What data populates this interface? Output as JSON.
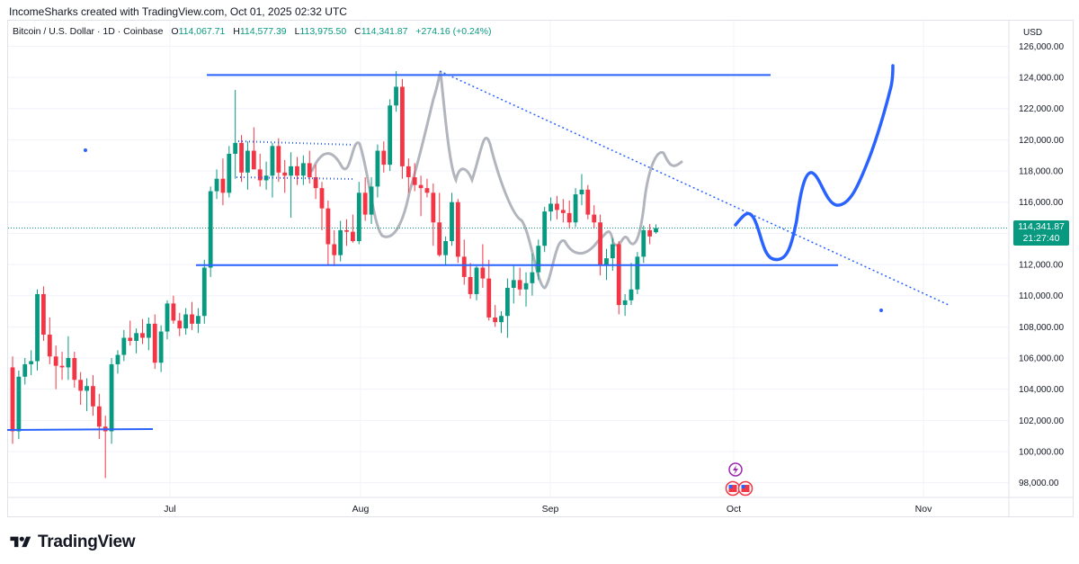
{
  "credit": "IncomeSharks created with TradingView.com, Oct 01, 2025 02:32 UTC",
  "legend": {
    "symbol": "Bitcoin / U.S. Dollar · 1D · Coinbase",
    "open_label": "O",
    "open": "114,067.71",
    "high_label": "H",
    "high": "114,577.39",
    "low_label": "L",
    "low": "113,975.50",
    "close_label": "C",
    "close": "114,341.87",
    "change": "+274.16 (+0.24%)"
  },
  "currency": "USD",
  "last_price": {
    "value": "114,341.87",
    "countdown": "21:27:40"
  },
  "brand": "TradingView",
  "colors": {
    "up": "#089981",
    "down": "#f23645",
    "drawing": "#2962ff",
    "ghost": "#b2b5be",
    "axis_text": "#131722"
  },
  "chart_data": {
    "type": "candlestick",
    "x_ticks": [
      "Jul",
      "Aug",
      "Sep",
      "Oct",
      "Nov"
    ],
    "y_ticks": [
      "98,000.00",
      "100,000.00",
      "102,000.00",
      "104,000.00",
      "106,000.00",
      "108,000.00",
      "110,000.00",
      "112,000.00",
      "114,000.00",
      "116,000.00",
      "118,000.00",
      "120,000.00",
      "122,000.00",
      "124,000.00",
      "126,000.00"
    ],
    "y_tick_values": [
      98000,
      100000,
      102000,
      104000,
      106000,
      108000,
      110000,
      112000,
      114000,
      116000,
      118000,
      120000,
      122000,
      124000,
      126000
    ],
    "ylim": [
      96500,
      127500
    ],
    "candles": [
      [
        105400,
        106100,
        100500,
        101300
      ],
      [
        101300,
        105200,
        100800,
        104800
      ],
      [
        104800,
        106000,
        104300,
        105600
      ],
      [
        105600,
        106500,
        104900,
        105800
      ],
      [
        105800,
        110400,
        105200,
        110100
      ],
      [
        110100,
        110600,
        107100,
        107500
      ],
      [
        107500,
        108600,
        105600,
        106100
      ],
      [
        106100,
        106800,
        104000,
        105500
      ],
      [
        105500,
        106400,
        104600,
        105400
      ],
      [
        105400,
        107400,
        104600,
        106000
      ],
      [
        106000,
        106400,
        104100,
        104600
      ],
      [
        104600,
        105100,
        103000,
        103900
      ],
      [
        103900,
        104700,
        102600,
        104200
      ],
      [
        104200,
        104900,
        102300,
        102900
      ],
      [
        102900,
        103700,
        100800,
        101600
      ],
      [
        101600,
        102300,
        98300,
        101300
      ],
      [
        101300,
        106000,
        100500,
        105600
      ],
      [
        105600,
        106500,
        105000,
        106200
      ],
      [
        106200,
        107800,
        105800,
        107300
      ],
      [
        107300,
        108400,
        106800,
        107100
      ],
      [
        107100,
        107900,
        106300,
        107600
      ],
      [
        107600,
        108500,
        106900,
        107300
      ],
      [
        107300,
        108600,
        106500,
        108200
      ],
      [
        108200,
        108800,
        105300,
        105700
      ],
      [
        105700,
        108100,
        105100,
        107700
      ],
      [
        107700,
        109700,
        107200,
        109500
      ],
      [
        109500,
        110000,
        108200,
        108400
      ],
      [
        108400,
        108900,
        107400,
        107900
      ],
      [
        107900,
        109200,
        107500,
        108800
      ],
      [
        108800,
        109600,
        107800,
        108200
      ],
      [
        108200,
        109200,
        107600,
        108700
      ],
      [
        108700,
        112300,
        108200,
        111800
      ],
      [
        111800,
        117000,
        111200,
        116700
      ],
      [
        116700,
        118100,
        116200,
        117500
      ],
      [
        117500,
        118800,
        115800,
        116600
      ],
      [
        116600,
        119600,
        116300,
        119100
      ],
      [
        119100,
        123200,
        117500,
        119800
      ],
      [
        119800,
        120300,
        117300,
        117900
      ],
      [
        117900,
        119900,
        116800,
        119300
      ],
      [
        119300,
        120800,
        118200,
        118100
      ],
      [
        118100,
        119100,
        117000,
        117400
      ],
      [
        117400,
        118600,
        116800,
        117700
      ],
      [
        117700,
        119800,
        116300,
        119600
      ],
      [
        119600,
        120100,
        117300,
        117900
      ],
      [
        117900,
        118700,
        116600,
        117700
      ],
      [
        117700,
        119200,
        115000,
        118300
      ],
      [
        118300,
        118900,
        117100,
        117700
      ],
      [
        117700,
        119000,
        117100,
        118500
      ],
      [
        118500,
        119300,
        117200,
        117600
      ],
      [
        117600,
        118400,
        116200,
        116900
      ],
      [
        116900,
        117300,
        114200,
        115600
      ],
      [
        115600,
        116100,
        112000,
        113300
      ],
      [
        113300,
        114200,
        111900,
        112600
      ],
      [
        112600,
        114800,
        112200,
        114200
      ],
      [
        114200,
        114900,
        113200,
        114100
      ],
      [
        114100,
        115200,
        113400,
        113500
      ],
      [
        113500,
        117300,
        113300,
        116600
      ],
      [
        116600,
        117600,
        114800,
        115200
      ],
      [
        115200,
        117600,
        114600,
        117000
      ],
      [
        117000,
        119700,
        116300,
        119300
      ],
      [
        119300,
        119900,
        117900,
        118400
      ],
      [
        118400,
        122600,
        118000,
        122200
      ],
      [
        122200,
        124400,
        121800,
        123400
      ],
      [
        123400,
        123900,
        117500,
        118300
      ],
      [
        118300,
        118800,
        116600,
        117600
      ],
      [
        117600,
        118500,
        116700,
        117100
      ],
      [
        117100,
        117700,
        115100,
        116900
      ],
      [
        116900,
        117500,
        116300,
        116600
      ],
      [
        116600,
        117200,
        113200,
        114700
      ],
      [
        114700,
        116600,
        112500,
        112600
      ],
      [
        112600,
        113800,
        112000,
        113500
      ],
      [
        113500,
        116600,
        113200,
        116000
      ],
      [
        116000,
        116200,
        112100,
        112500
      ],
      [
        112500,
        113600,
        110700,
        111200
      ],
      [
        111200,
        112100,
        109800,
        110100
      ],
      [
        110100,
        111900,
        109700,
        111800
      ],
      [
        111800,
        113300,
        110500,
        111100
      ],
      [
        111100,
        112300,
        108400,
        108600
      ],
      [
        108600,
        109400,
        108000,
        108300
      ],
      [
        108300,
        109000,
        107600,
        108700
      ],
      [
        108700,
        111100,
        107300,
        110500
      ],
      [
        110500,
        112000,
        109500,
        111000
      ],
      [
        111000,
        111800,
        110000,
        110400
      ],
      [
        110400,
        111500,
        109300,
        110800
      ],
      [
        110800,
        112700,
        110000,
        111500
      ],
      [
        111500,
        113600,
        111000,
        113200
      ],
      [
        113200,
        115700,
        112800,
        115400
      ],
      [
        115400,
        116300,
        114800,
        115900
      ],
      [
        115900,
        116400,
        114900,
        115500
      ],
      [
        115500,
        116200,
        114700,
        115300
      ],
      [
        115300,
        116100,
        114300,
        114700
      ],
      [
        114700,
        116900,
        114400,
        116500
      ],
      [
        116500,
        117800,
        115800,
        116800
      ],
      [
        116800,
        117100,
        114900,
        115200
      ],
      [
        115200,
        115800,
        114300,
        114700
      ],
      [
        114700,
        115200,
        111300,
        112000
      ],
      [
        112000,
        113000,
        111000,
        112400
      ],
      [
        112400,
        113700,
        111600,
        113300
      ],
      [
        113300,
        113500,
        108800,
        109400
      ],
      [
        109400,
        110100,
        108700,
        109700
      ],
      [
        109700,
        112100,
        109400,
        110400
      ],
      [
        110400,
        112800,
        110100,
        112500
      ],
      [
        112500,
        114500,
        112100,
        114200
      ],
      [
        114200,
        114600,
        113300,
        113800
      ],
      [
        114068,
        114577,
        113976,
        114342
      ]
    ],
    "annotations": {
      "resistance": 124100,
      "range_top_dotted": 119900,
      "support_mid": 111900,
      "support_low": 101300,
      "trendline_start": 124400,
      "trendline_end": 109400
    }
  }
}
